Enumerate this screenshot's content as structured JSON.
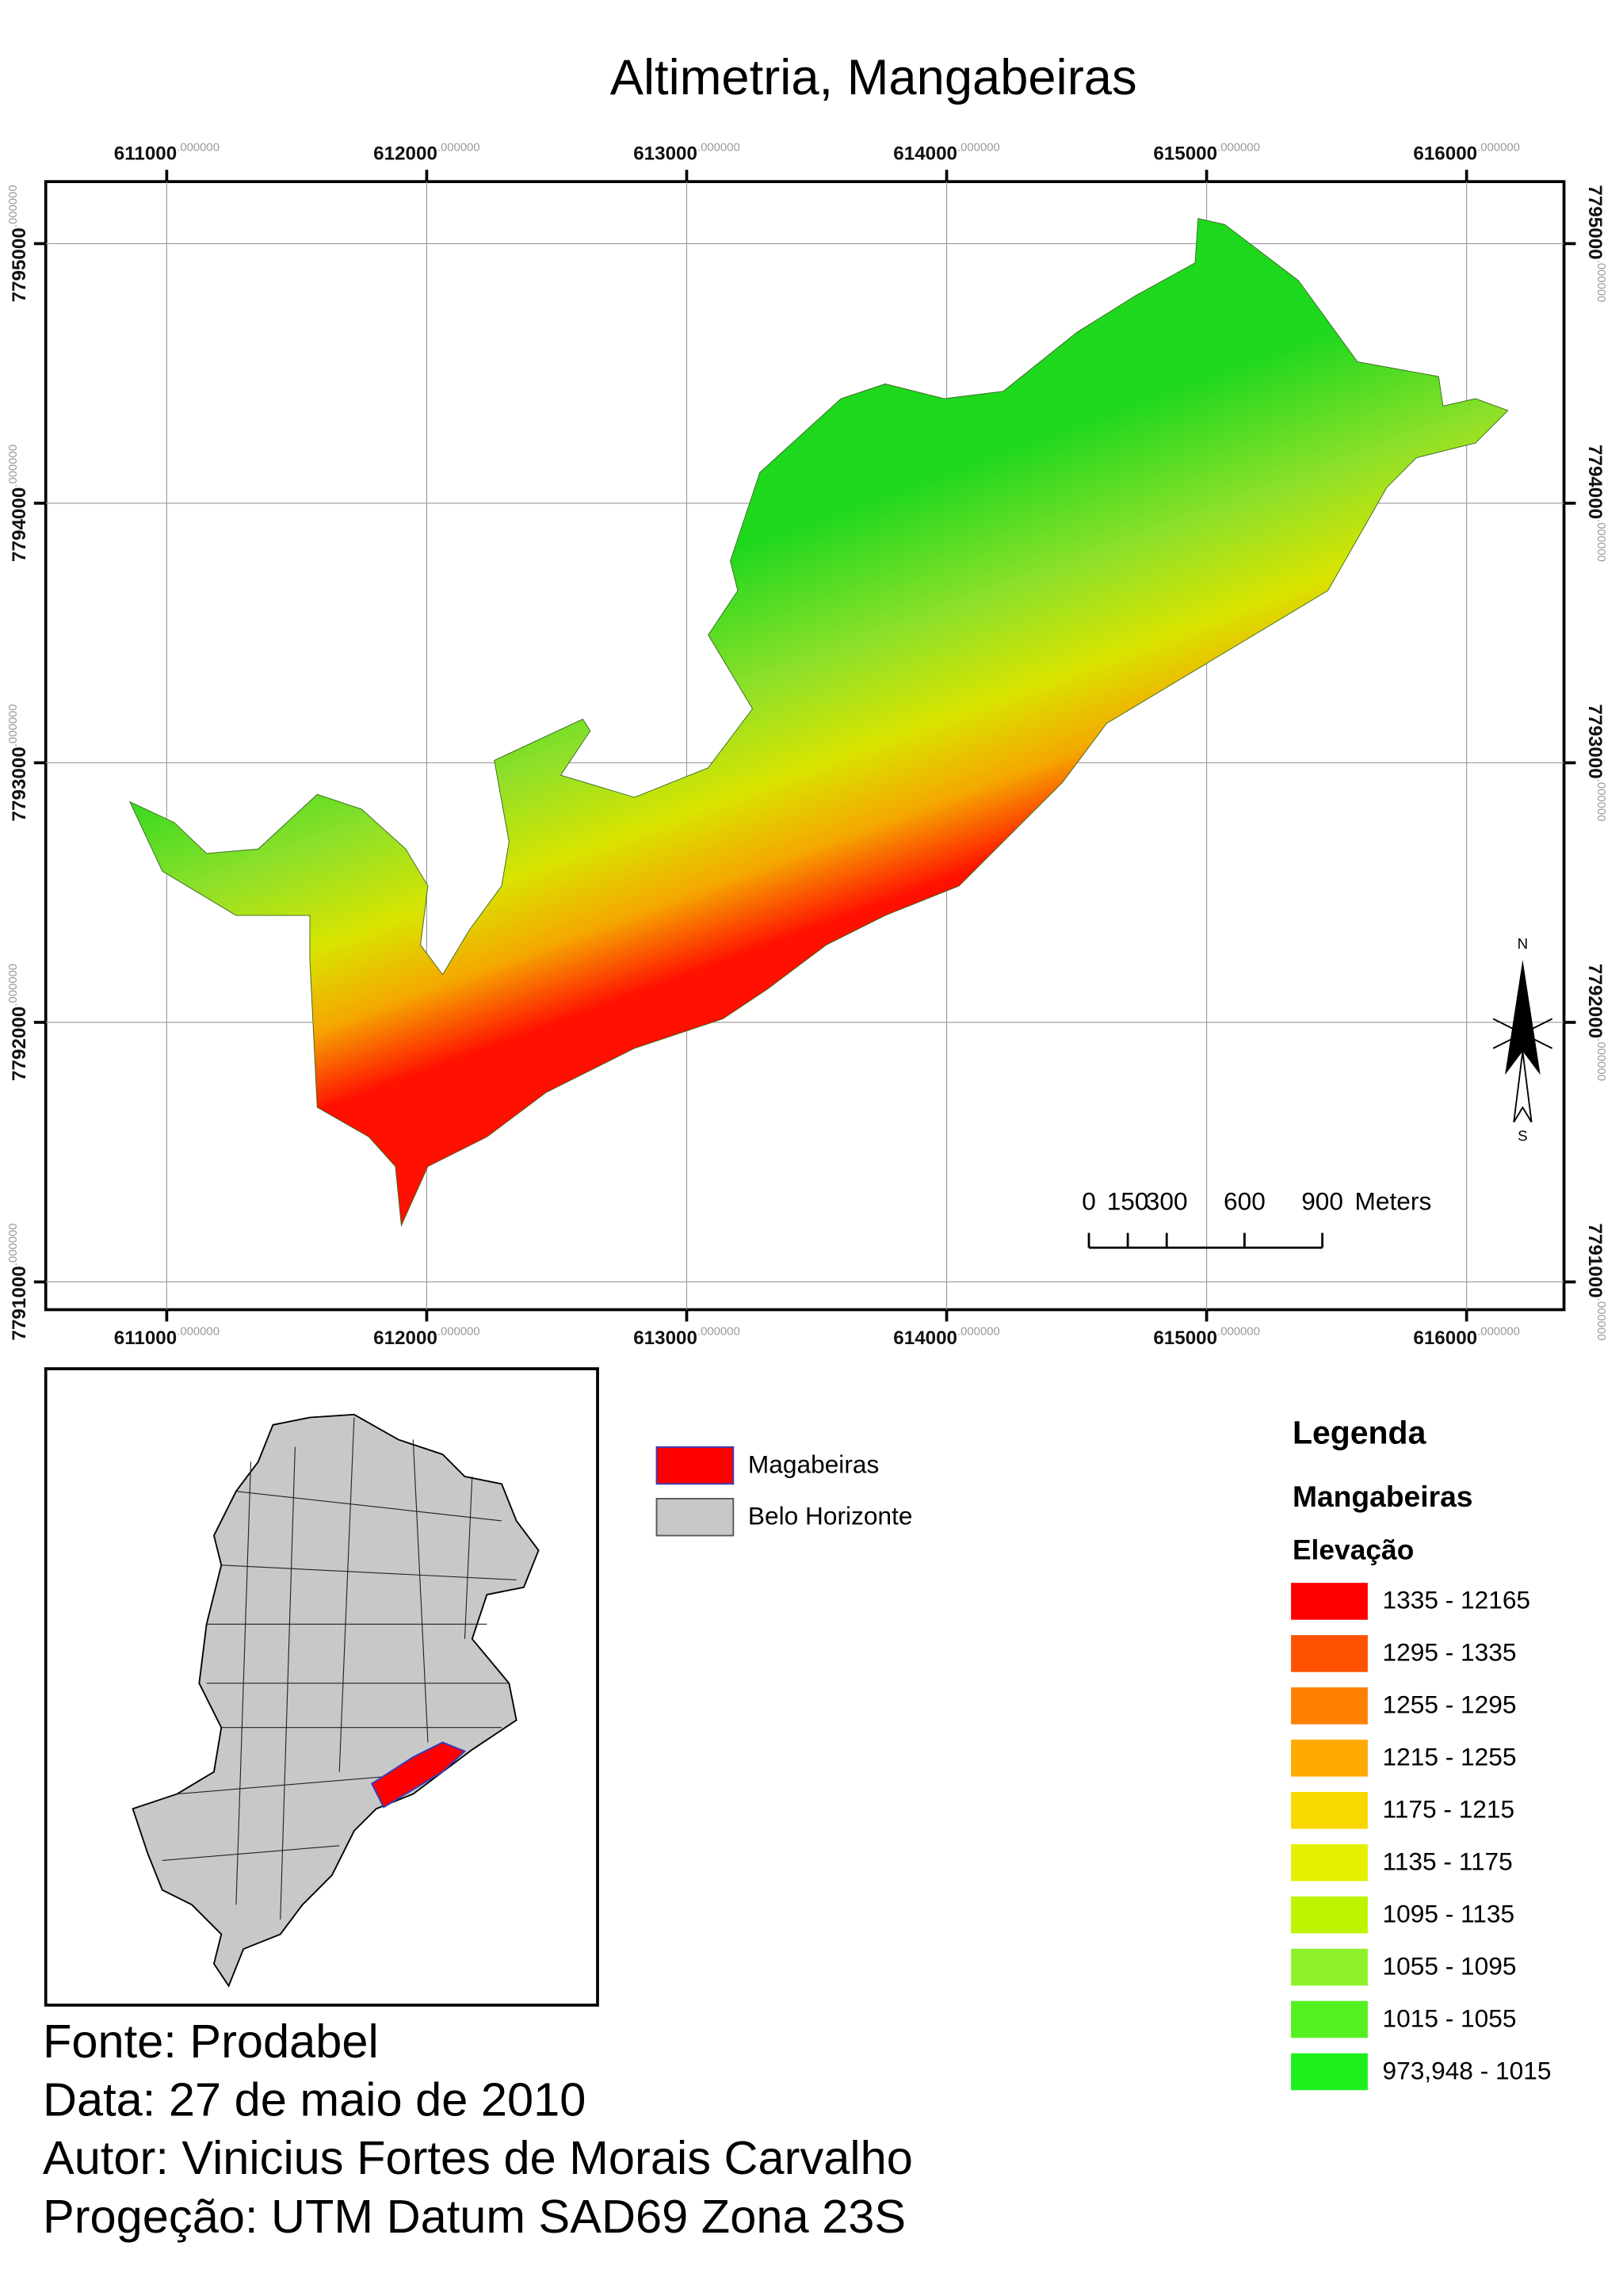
{
  "title": "Altimetria, Mangabeiras",
  "map": {
    "xticks": [
      611000,
      612000,
      613000,
      614000,
      615000,
      616000
    ],
    "yticks": [
      7795000,
      7794000,
      7793000,
      7792000,
      7791000
    ],
    "tick_suffix": ".000000",
    "north_label": "N",
    "south_label": "S",
    "scale_bar": {
      "values": [
        0,
        150,
        300,
        600,
        900
      ],
      "unit": "Meters"
    }
  },
  "inset_legend": [
    {
      "label": "Magabeiras",
      "color": "#ff0000"
    },
    {
      "label": "Belo Horizonte",
      "color": "#c8c8c8"
    }
  ],
  "legend": {
    "title": "Legenda",
    "layer": "Mangabeiras",
    "field": "Elevação",
    "items": [
      {
        "label": "1335 - 12165",
        "color": "#ff0000"
      },
      {
        "label": "1295 - 1335",
        "color": "#ff5200"
      },
      {
        "label": "1255 - 1295",
        "color": "#ff7f00"
      },
      {
        "label": "1215 - 1255",
        "color": "#ffaa00"
      },
      {
        "label": "1175 - 1215",
        "color": "#f8d800"
      },
      {
        "label": "1135 - 1175",
        "color": "#e4f000"
      },
      {
        "label": "1095 - 1135",
        "color": "#bdf400"
      },
      {
        "label": "1055 - 1095",
        "color": "#8ef22a"
      },
      {
        "label": "1015 - 1055",
        "color": "#55f01f"
      },
      {
        "label": "973,948 - 1015",
        "color": "#1ef01e"
      }
    ]
  },
  "footer": [
    "Fonte: Prodabel",
    "Data: 27 de maio de 2010",
    "Autor: Vinicius Fortes de Morais Carvalho",
    "Progeção: UTM Datum SAD69 Zona 23S"
  ]
}
